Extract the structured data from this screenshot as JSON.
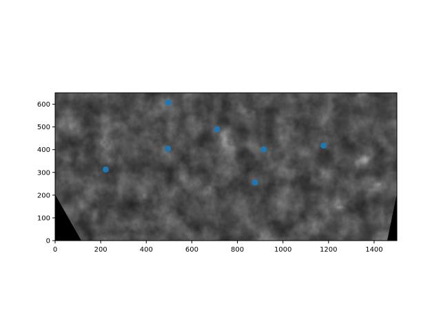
{
  "chart_data": {
    "type": "scatter",
    "title": "",
    "xlabel": "",
    "ylabel": "",
    "xlim": [
      0,
      1500
    ],
    "ylim": [
      0,
      650
    ],
    "grid": false,
    "x_ticks": [
      0,
      200,
      400,
      600,
      800,
      1000,
      1200,
      1400
    ],
    "y_ticks": [
      0,
      100,
      200,
      300,
      400,
      500,
      600
    ],
    "background": "grayscale satellite cloud image of North America",
    "marker_color": "#1f77b4",
    "series": [
      {
        "points": [
          {
            "x": 222,
            "y": 313
          },
          {
            "x": 497,
            "y": 607
          },
          {
            "x": 495,
            "y": 404
          },
          {
            "x": 711,
            "y": 490
          },
          {
            "x": 916,
            "y": 401
          },
          {
            "x": 878,
            "y": 256
          },
          {
            "x": 1178,
            "y": 418
          }
        ]
      }
    ]
  }
}
